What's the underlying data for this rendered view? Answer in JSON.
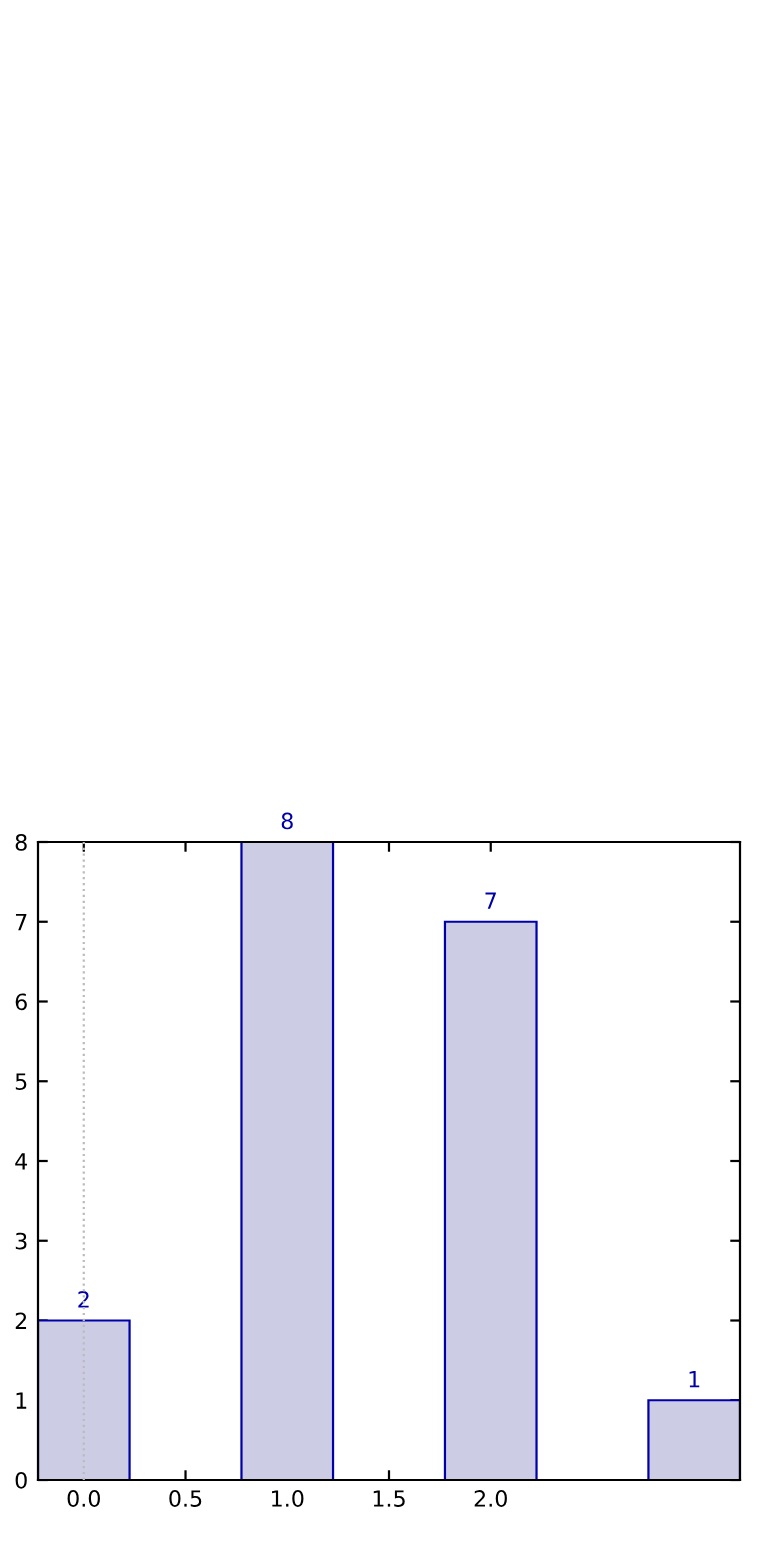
{
  "chart_data": {
    "type": "bar",
    "x": [
      0,
      1,
      2,
      3
    ],
    "values": [
      2,
      8,
      7,
      1
    ],
    "color": "#ccccE5",
    "xlim": [
      -0.225,
      3.225
    ],
    "xticks": [
      {
        "value": 0,
        "label": "0.0"
      },
      {
        "value": 0.5,
        "label": "0.5"
      },
      {
        "value": 1,
        "label": "1.0"
      },
      {
        "value": 1.5,
        "label": "1.5"
      },
      {
        "value": 2,
        "label": "2.0"
      }
    ],
    "ylim": [
      0,
      8
    ],
    "yticks": [
      0,
      1,
      2,
      3,
      4,
      5,
      6,
      7,
      8
    ],
    "ref_lines": [
      {
        "axis": "x",
        "value": 0,
        "label": null,
        "color": "#bbbbbb",
        "line_style": "dotted"
      }
    ],
    "data_labels": true,
    "grid": false,
    "legend": false
  }
}
